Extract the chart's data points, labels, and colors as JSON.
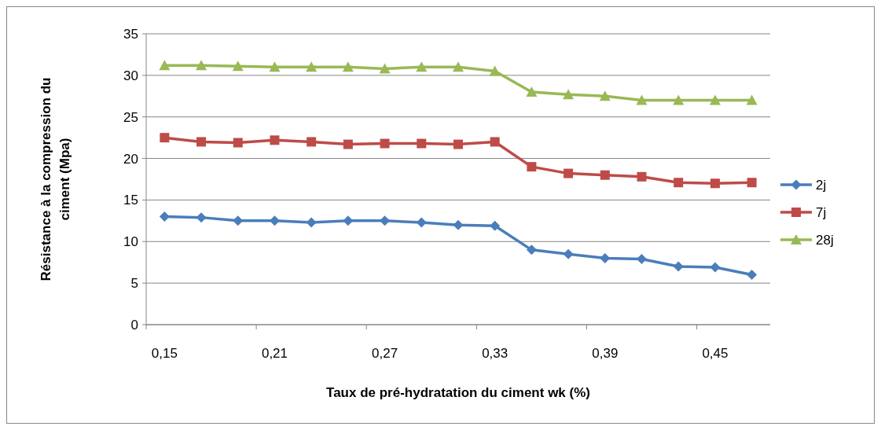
{
  "chart_data": {
    "type": "line",
    "xlabel": "Taux de pré-hydratation du ciment wk (%)",
    "ylabel": "Résistance à la compression du ciment (Mpa)",
    "categories": [
      "0,15",
      null,
      null,
      "0,21",
      null,
      null,
      "0,27",
      null,
      null,
      "0,33",
      null,
      null,
      "0,39",
      null,
      null,
      "0,45",
      null
    ],
    "series": [
      {
        "name": "2j",
        "color": "#4a7ebb",
        "marker": "diamond",
        "values": [
          13,
          12.9,
          12.5,
          12.5,
          12.3,
          12.5,
          12.5,
          12.3,
          12,
          11.9,
          9,
          8.5,
          8,
          7.9,
          7,
          6.9,
          6
        ]
      },
      {
        "name": "7j",
        "color": "#be4b48",
        "marker": "square",
        "values": [
          22.5,
          22,
          21.9,
          22.2,
          22,
          21.7,
          21.8,
          21.8,
          21.7,
          22,
          19,
          18.2,
          18,
          17.8,
          17.1,
          17,
          17.1
        ]
      },
      {
        "name": "28j",
        "color": "#98b954",
        "marker": "triangle",
        "values": [
          31.2,
          31.2,
          31.1,
          31,
          31,
          31,
          30.8,
          31,
          31,
          30.5,
          28,
          27.7,
          27.5,
          27,
          27,
          27,
          27
        ]
      }
    ],
    "ylim": [
      0,
      35
    ],
    "yticks": [
      0,
      5,
      10,
      15,
      20,
      25,
      30,
      35
    ],
    "grid": "y",
    "legend": "right"
  }
}
